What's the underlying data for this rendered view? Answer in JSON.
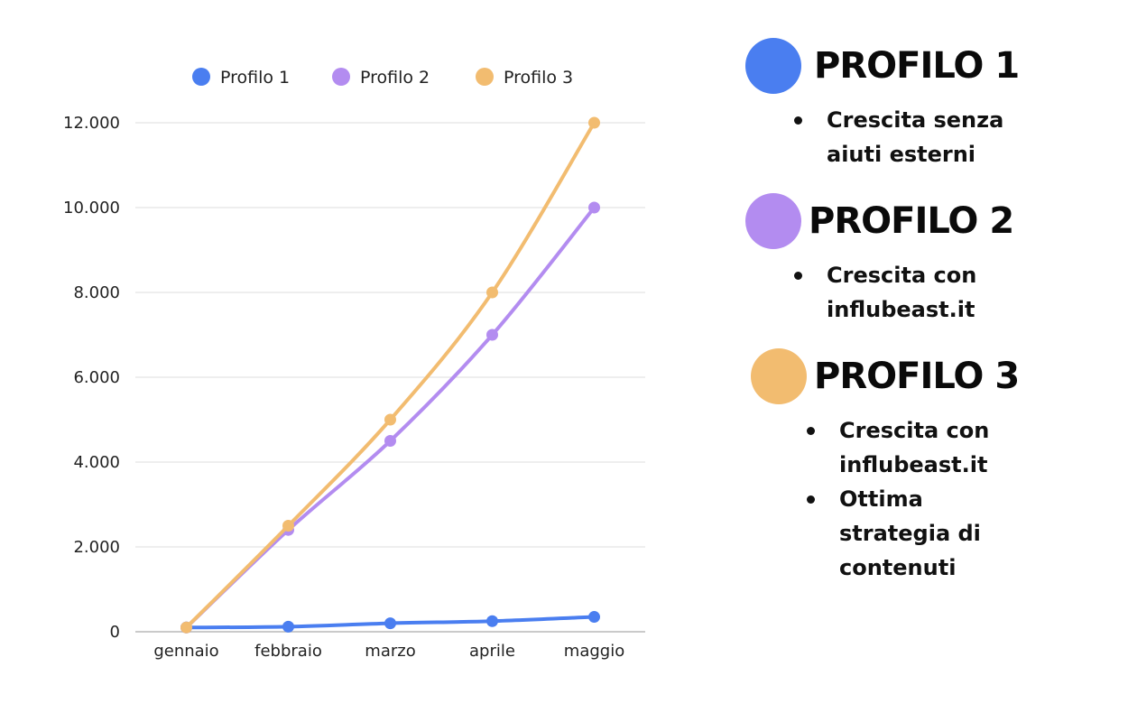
{
  "chart_data": {
    "type": "line",
    "categories": [
      "gennaio",
      "febbraio",
      "marzo",
      "aprile",
      "maggio"
    ],
    "series": [
      {
        "name": "Profilo 1",
        "color": "#4a7ef0",
        "values": [
          100,
          120,
          200,
          250,
          350
        ]
      },
      {
        "name": "Profilo 2",
        "color": "#b38cf0",
        "values": [
          100,
          2400,
          4500,
          7000,
          10000
        ]
      },
      {
        "name": "Profilo 3",
        "color": "#f2bc70",
        "values": [
          100,
          2500,
          5000,
          8000,
          12000
        ]
      }
    ],
    "ylim": [
      0,
      12000
    ],
    "yticks": [
      0,
      2000,
      4000,
      6000,
      8000,
      10000,
      12000
    ],
    "ytick_labels": [
      "0",
      "2.000",
      "4.000",
      "6.000",
      "8.000",
      "10.000",
      "12.000"
    ],
    "grid": true,
    "legend": "top"
  },
  "profiles": [
    {
      "title": "PROFILO 1",
      "color": "#4a7ef0",
      "bullets": [
        "Crescita senza aiuti esterni"
      ]
    },
    {
      "title": "PROFILO 2",
      "color": "#b38cf0",
      "bullets": [
        "Crescita con influbeast.it"
      ]
    },
    {
      "title": "PROFILO 3",
      "color": "#f2bc70",
      "bullets": [
        "Crescita con influbeast.it",
        "Ottima strategia di contenuti"
      ]
    }
  ]
}
